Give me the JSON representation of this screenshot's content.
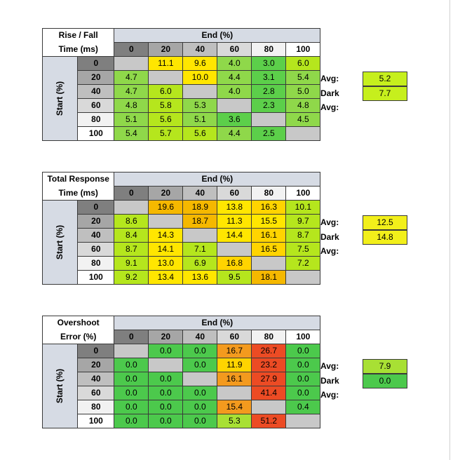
{
  "chart_data": [
    {
      "type": "table",
      "title_line1": "Rise / Fall",
      "title_line2": "Time (ms)",
      "col_header": "End (%)",
      "row_header": "Start (%)",
      "columns": [
        "0",
        "20",
        "40",
        "60",
        "80",
        "100"
      ],
      "rows": [
        {
          "label": "0",
          "values": [
            "",
            "11.1",
            "9.6",
            "4.0",
            "3.0",
            "6.0"
          ]
        },
        {
          "label": "20",
          "values": [
            "4.7",
            "",
            "10.0",
            "4.4",
            "3.1",
            "5.4"
          ]
        },
        {
          "label": "40",
          "values": [
            "4.7",
            "6.0",
            "",
            "4.0",
            "2.8",
            "5.0"
          ]
        },
        {
          "label": "60",
          "values": [
            "4.8",
            "5.8",
            "5.3",
            "",
            "2.3",
            "4.8"
          ]
        },
        {
          "label": "80",
          "values": [
            "5.1",
            "5.6",
            "5.1",
            "3.6",
            "",
            "4.5"
          ]
        },
        {
          "label": "100",
          "values": [
            "5.4",
            "5.7",
            "5.6",
            "4.4",
            "2.5",
            ""
          ]
        }
      ],
      "cell_colors": [
        [
          "#c8c8c8",
          "#ffe600",
          "#ffe600",
          "#8fd84a",
          "#5ccf4a",
          "#b5e61d"
        ],
        [
          "#8fd84a",
          "#c8c8c8",
          "#ffe600",
          "#8fd84a",
          "#5ccf4a",
          "#8fd84a"
        ],
        [
          "#8fd84a",
          "#b5e61d",
          "#c8c8c8",
          "#8fd84a",
          "#5ccf4a",
          "#8fd84a"
        ],
        [
          "#8fd84a",
          "#b5e61d",
          "#8fd84a",
          "#c8c8c8",
          "#5ccf4a",
          "#8fd84a"
        ],
        [
          "#8fd84a",
          "#b5e61d",
          "#8fd84a",
          "#5ccf4a",
          "#c8c8c8",
          "#8fd84a"
        ],
        [
          "#8fd84a",
          "#b5e61d",
          "#b5e61d",
          "#8fd84a",
          "#5ccf4a",
          "#c8c8c8"
        ]
      ],
      "avg_label": "Avg:",
      "avg": "5.2",
      "avg_color": "#c6ef1d",
      "dark_avg_label": "Dark Avg:",
      "dark_avg": "7.7",
      "dark_avg_color": "#c6ef1d"
    },
    {
      "type": "table",
      "title_line1": "Total Response",
      "title_line2": "Time (ms)",
      "col_header": "End (%)",
      "row_header": "Start (%)",
      "columns": [
        "0",
        "20",
        "40",
        "60",
        "80",
        "100"
      ],
      "rows": [
        {
          "label": "0",
          "values": [
            "",
            "19.6",
            "18.9",
            "13.8",
            "16.3",
            "10.1"
          ]
        },
        {
          "label": "20",
          "values": [
            "8.6",
            "",
            "18.7",
            "11.3",
            "15.5",
            "9.7"
          ]
        },
        {
          "label": "40",
          "values": [
            "8.4",
            "14.3",
            "",
            "14.4",
            "16.1",
            "8.7"
          ]
        },
        {
          "label": "60",
          "values": [
            "8.7",
            "14.1",
            "7.1",
            "",
            "16.5",
            "7.5"
          ]
        },
        {
          "label": "80",
          "values": [
            "9.1",
            "13.0",
            "6.9",
            "16.8",
            "",
            "7.2"
          ]
        },
        {
          "label": "100",
          "values": [
            "9.2",
            "13.4",
            "13.6",
            "9.5",
            "18.1",
            ""
          ]
        }
      ],
      "cell_colors": [
        [
          "#c8c8c8",
          "#f5b800",
          "#f5b800",
          "#ffe600",
          "#ffd400",
          "#b5e61d"
        ],
        [
          "#b5e61d",
          "#c8c8c8",
          "#f5b800",
          "#ffe600",
          "#ffe600",
          "#b5e61d"
        ],
        [
          "#b5e61d",
          "#ffe600",
          "#c8c8c8",
          "#ffe600",
          "#ffd400",
          "#b5e61d"
        ],
        [
          "#b5e61d",
          "#ffe600",
          "#b5e61d",
          "#c8c8c8",
          "#ffd400",
          "#b5e61d"
        ],
        [
          "#b5e61d",
          "#ffe600",
          "#b5e61d",
          "#ffd400",
          "#c8c8c8",
          "#b5e61d"
        ],
        [
          "#b5e61d",
          "#ffe600",
          "#ffe600",
          "#b5e61d",
          "#f5b800",
          "#c8c8c8"
        ]
      ],
      "avg_label": "Avg:",
      "avg": "12.5",
      "avg_color": "#f2ef1a",
      "dark_avg_label": "Dark Avg:",
      "dark_avg": "14.8",
      "dark_avg_color": "#f2ef1a"
    },
    {
      "type": "table",
      "title_line1": "Overshoot",
      "title_line2": "Error (%)",
      "col_header": "End (%)",
      "row_header": "Start (%)",
      "columns": [
        "0",
        "20",
        "40",
        "60",
        "80",
        "100"
      ],
      "rows": [
        {
          "label": "0",
          "values": [
            "",
            "0.0",
            "0.0",
            "16.7",
            "26.7",
            "0.0"
          ]
        },
        {
          "label": "20",
          "values": [
            "0.0",
            "",
            "0.0",
            "11.9",
            "23.2",
            "0.0"
          ]
        },
        {
          "label": "40",
          "values": [
            "0.0",
            "0.0",
            "",
            "16.1",
            "27.9",
            "0.0"
          ]
        },
        {
          "label": "60",
          "values": [
            "0.0",
            "0.0",
            "0.0",
            "",
            "41.4",
            "0.0"
          ]
        },
        {
          "label": "80",
          "values": [
            "0.0",
            "0.0",
            "0.0",
            "15.4",
            "",
            "0.4"
          ]
        },
        {
          "label": "100",
          "values": [
            "0.0",
            "0.0",
            "0.0",
            "5.3",
            "51.2",
            ""
          ]
        }
      ],
      "cell_colors": [
        [
          "#c8c8c8",
          "#4cc94c",
          "#4cc94c",
          "#f39a1e",
          "#ec4b24",
          "#4cc94c"
        ],
        [
          "#4cc94c",
          "#c8c8c8",
          "#4cc94c",
          "#ffd400",
          "#ec4b24",
          "#4cc94c"
        ],
        [
          "#4cc94c",
          "#4cc94c",
          "#c8c8c8",
          "#f39a1e",
          "#ec4b24",
          "#4cc94c"
        ],
        [
          "#4cc94c",
          "#4cc94c",
          "#4cc94c",
          "#c8c8c8",
          "#ec4b24",
          "#4cc94c"
        ],
        [
          "#4cc94c",
          "#4cc94c",
          "#4cc94c",
          "#f39a1e",
          "#c8c8c8",
          "#4cc94c"
        ],
        [
          "#4cc94c",
          "#4cc94c",
          "#4cc94c",
          "#a8e034",
          "#ec4b24",
          "#c8c8c8"
        ]
      ],
      "avg_label": "Avg:",
      "avg": "7.9",
      "avg_color": "#a8e034",
      "dark_avg_label": "Dark Avg:",
      "dark_avg": "0.0",
      "dark_avg_color": "#4cc94c"
    }
  ],
  "colors": {
    "header_blue": "#d6dbe4",
    "col_header_shades": [
      "#7f7f7f",
      "#a6a6a6",
      "#bfbfbf",
      "#d9d9d9",
      "#f2f2f2",
      "#ffffff"
    ],
    "row_header_shades": [
      "#7f7f7f",
      "#a6a6a6",
      "#bfbfbf",
      "#d9d9d9",
      "#f2f2f2",
      "#ffffff"
    ],
    "diagonal": "#c8c8c8"
  }
}
